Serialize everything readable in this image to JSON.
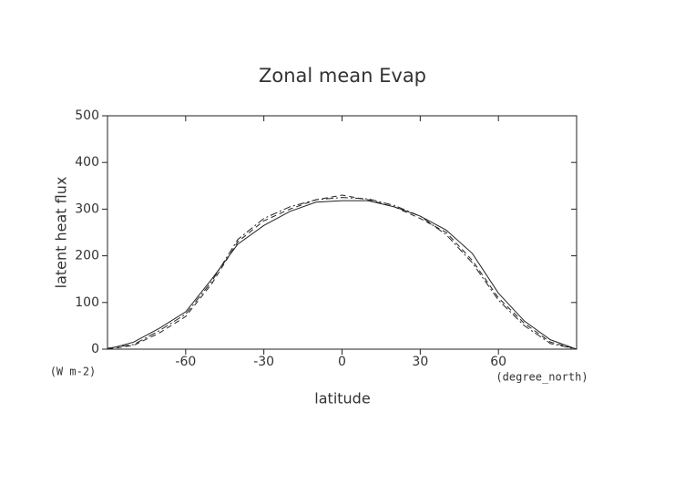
{
  "chart_data": {
    "type": "line",
    "title": "Zonal mean Evap",
    "x_label": "latitude",
    "y_label": "latent heat flux",
    "y_unit": "(W m-2)",
    "x_unit": "(degree_north)",
    "x": [
      -90,
      -80,
      -70,
      -60,
      -50,
      -40,
      -30,
      -20,
      -10,
      0,
      10,
      20,
      30,
      40,
      50,
      60,
      70,
      80,
      90
    ],
    "series": [
      {
        "color": "#222222",
        "dash": "none",
        "values": [
          0,
          15,
          45,
          80,
          150,
          225,
          265,
          295,
          315,
          318,
          318,
          305,
          285,
          255,
          205,
          120,
          60,
          20,
          0
        ]
      },
      {
        "color": "#222222",
        "dash": "6 4",
        "values": [
          0,
          8,
          35,
          70,
          140,
          230,
          275,
          300,
          320,
          330,
          320,
          305,
          280,
          250,
          190,
          110,
          55,
          15,
          0
        ]
      },
      {
        "color": "#222222",
        "dash": "8 3 2 3",
        "values": [
          2,
          10,
          40,
          75,
          145,
          235,
          280,
          305,
          320,
          325,
          322,
          308,
          285,
          245,
          185,
          105,
          50,
          12,
          0
        ]
      }
    ],
    "xlim": [
      -90,
      90
    ],
    "ylim": [
      0,
      500
    ],
    "xticks": [
      -60,
      -30,
      0,
      30,
      60
    ],
    "yticks": [
      0,
      100,
      200,
      300,
      400,
      500
    ]
  }
}
